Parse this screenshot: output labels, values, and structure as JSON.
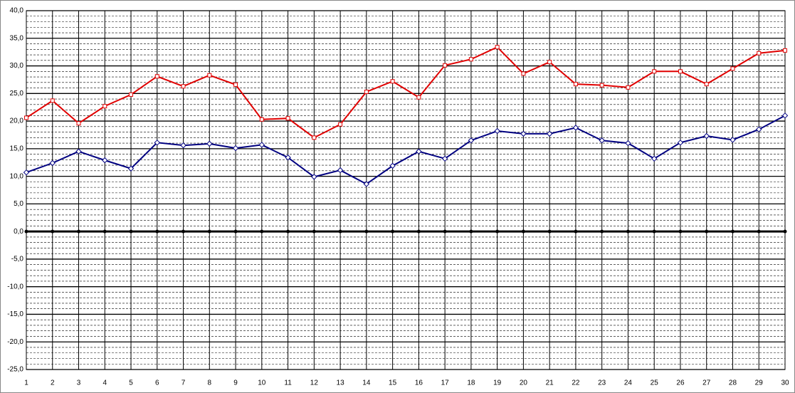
{
  "chart_data": {
    "type": "line",
    "categories": [
      "1",
      "2",
      "3",
      "4",
      "5",
      "6",
      "7",
      "8",
      "9",
      "10",
      "11",
      "12",
      "13",
      "14",
      "15",
      "16",
      "17",
      "18",
      "19",
      "20",
      "21",
      "22",
      "23",
      "24",
      "25",
      "26",
      "27",
      "28",
      "29",
      "30"
    ],
    "series": [
      {
        "color": "#e00000",
        "marker": "square",
        "values": [
          20.6,
          23.7,
          19.6,
          22.7,
          24.8,
          28.1,
          26.3,
          28.3,
          26.6,
          20.3,
          20.5,
          17.0,
          19.4,
          25.3,
          27.2,
          24.3,
          30.1,
          31.2,
          33.4,
          28.6,
          30.7,
          26.7,
          26.5,
          26.1,
          29.0,
          29.0,
          26.7,
          29.5,
          32.3,
          32.8
        ]
      },
      {
        "color": "#000080",
        "marker": "diamond",
        "values": [
          10.7,
          12.4,
          14.5,
          12.9,
          11.4,
          16.1,
          15.6,
          15.9,
          15.1,
          15.7,
          13.4,
          9.9,
          11.1,
          8.6,
          11.9,
          14.5,
          13.2,
          16.5,
          18.2,
          17.7,
          17.7,
          18.8,
          16.5,
          16.0,
          13.2,
          16.1,
          17.3,
          16.6,
          18.5,
          21.0
        ]
      }
    ],
    "ylim": [
      -25,
      40
    ],
    "yticks": [
      {
        "value": -25,
        "label": "-25,0"
      },
      {
        "value": -20,
        "label": "-20,0"
      },
      {
        "value": -15,
        "label": "-15,0"
      },
      {
        "value": -10,
        "label": "-10,0"
      },
      {
        "value": -5,
        "label": "-5,0"
      },
      {
        "value": 0,
        "label": "0,0"
      },
      {
        "value": 5,
        "label": "5,0"
      },
      {
        "value": 10,
        "label": "10,0"
      },
      {
        "value": 15,
        "label": "15,0"
      },
      {
        "value": 20,
        "label": "20,0"
      },
      {
        "value": 25,
        "label": "25,0"
      },
      {
        "value": 30,
        "label": "30,0"
      },
      {
        "value": 35,
        "label": "35,0"
      },
      {
        "value": 40,
        "label": "40,0"
      }
    ],
    "grid": true
  }
}
